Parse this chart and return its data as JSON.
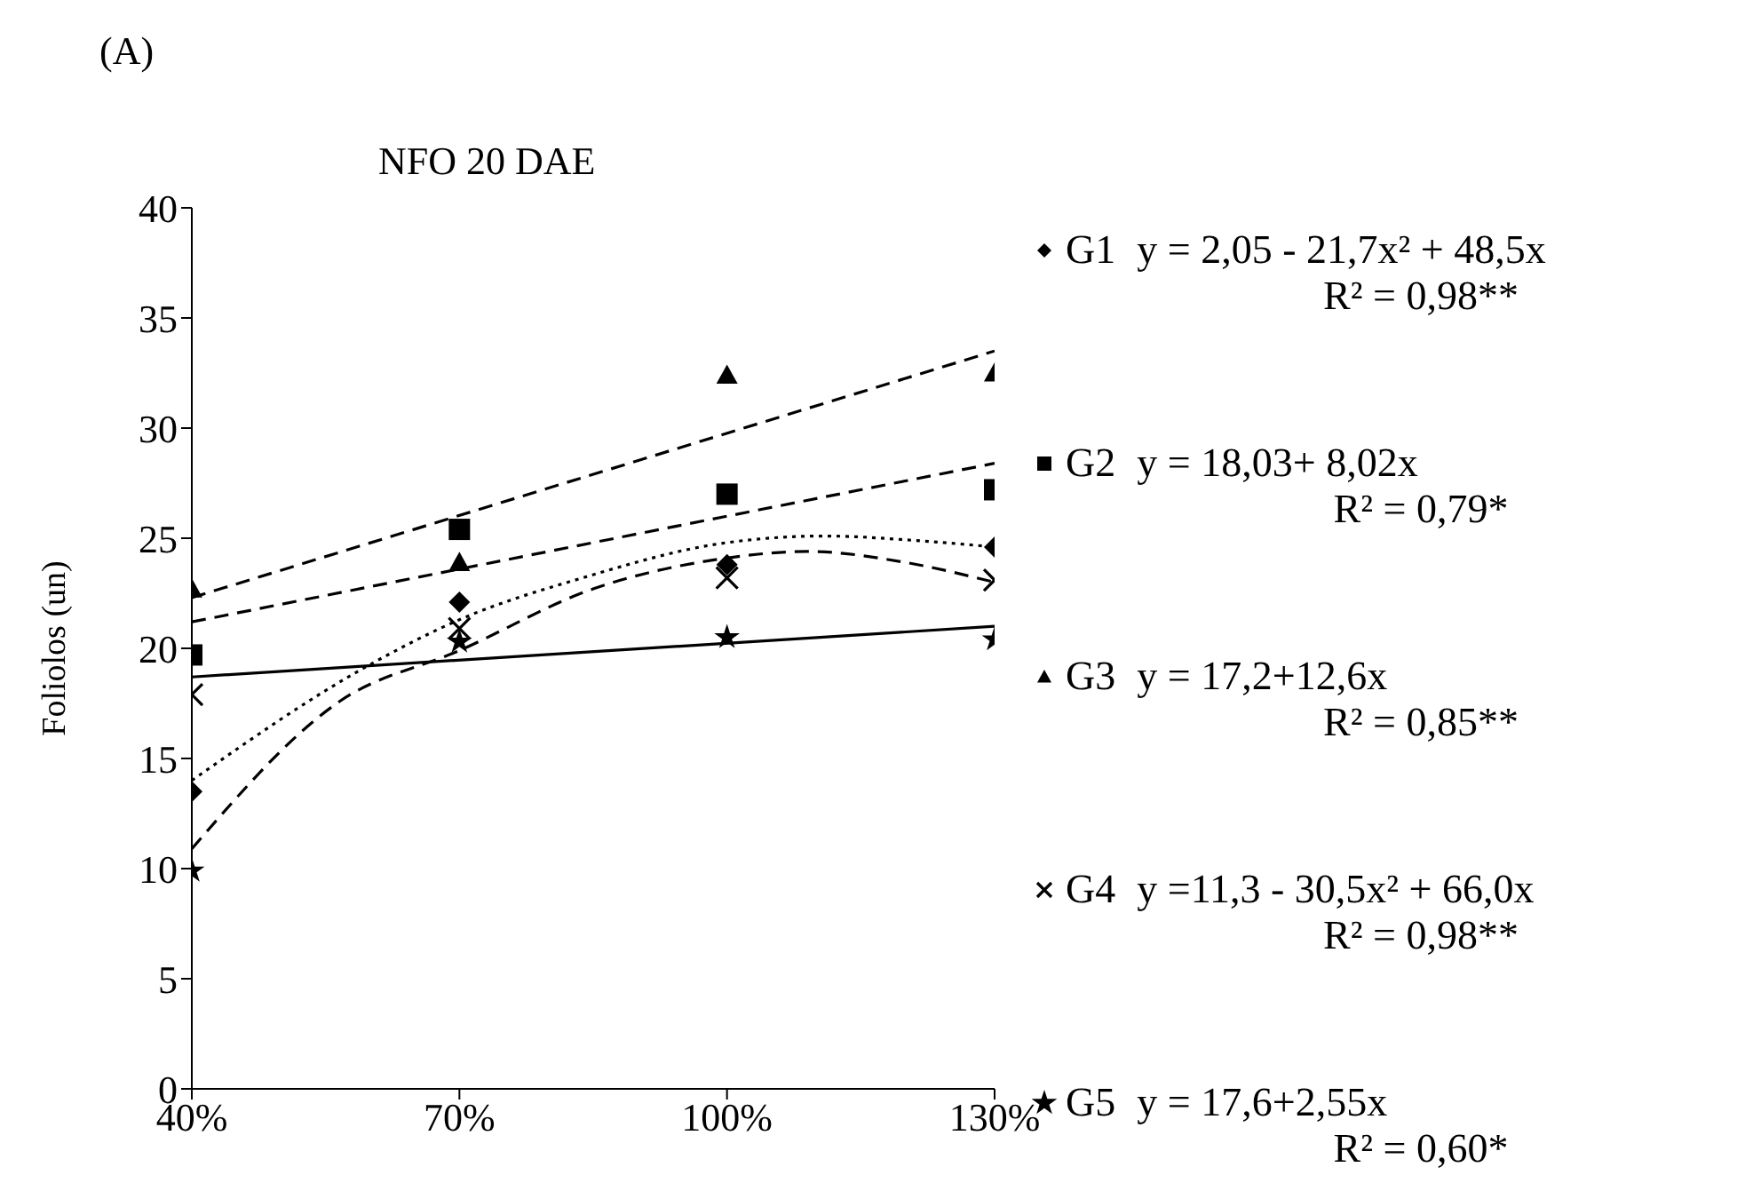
{
  "chart_data": {
    "type": "scatter",
    "title": "(A)",
    "subtitle": "NFO 20 DAE",
    "ylabel": "Foliolos (un)",
    "x": [
      40,
      70,
      100,
      130
    ],
    "xlim": [
      40,
      130
    ],
    "xticks": [
      {
        "value": 40,
        "label": "40%"
      },
      {
        "value": 70,
        "label": "70%"
      },
      {
        "value": 100,
        "label": "100%"
      },
      {
        "value": 130,
        "label": "130%"
      }
    ],
    "ylim": [
      0,
      40
    ],
    "yticks": [
      0,
      5,
      10,
      15,
      20,
      25,
      30,
      35,
      40
    ],
    "grid": false,
    "legend": "right",
    "series": [
      {
        "name": "G1",
        "marker": "diamond",
        "color": "#000000",
        "values": [
          13.5,
          22.1,
          23.8,
          24.6
        ]
      },
      {
        "name": "G2",
        "marker": "square",
        "color": "#000000",
        "values": [
          19.7,
          25.4,
          27.0,
          27.2
        ]
      },
      {
        "name": "G3",
        "marker": "triangle",
        "color": "#000000",
        "values": [
          22.7,
          23.9,
          32.4,
          32.5
        ]
      },
      {
        "name": "G4",
        "marker": "cross",
        "color": "#000000",
        "values": [
          17.9,
          20.9,
          23.2,
          23.1
        ]
      },
      {
        "name": "G5",
        "marker": "star",
        "color": "#000000",
        "values": [
          9.9,
          20.3,
          20.5,
          20.4
        ]
      },
      {
        "type": "line",
        "line_style": "dotted",
        "marker": "none",
        "color": "#000000",
        "x": [
          40,
          59.7,
          70,
          83.8,
          100,
          111,
          121,
          130
        ],
        "values": [
          14.0,
          19.2,
          21.3,
          23.2,
          24.8,
          25.1,
          24.9,
          24.6
        ]
      },
      {
        "type": "line",
        "line_style": "dashed",
        "marker": "none",
        "color": "#000000",
        "x": [
          40,
          130
        ],
        "values": [
          21.2,
          28.4
        ]
      },
      {
        "type": "line",
        "line_style": "dashed",
        "marker": "none",
        "color": "#000000",
        "x": [
          40,
          130
        ],
        "values": [
          22.3,
          33.5
        ]
      },
      {
        "type": "line",
        "line_style": "dashed",
        "marker": "none",
        "color": "#000000",
        "x": [
          40,
          56.6,
          70,
          85,
          100,
          109,
          120,
          130
        ],
        "values": [
          10.9,
          17.6,
          19.9,
          22.7,
          24.1,
          24.4,
          23.9,
          23.0
        ]
      },
      {
        "type": "line",
        "line_style": "solid",
        "marker": "none",
        "color": "#000000",
        "x": [
          40,
          130
        ],
        "values": [
          18.7,
          21.0
        ]
      }
    ],
    "annotations": [
      "y = 2,05 - 21,7x² + 48,5x",
      "R² = 0,98**",
      "y = 18,03+ 8,02x",
      "R² = 0,79*",
      "y = 17,2+12,6x",
      "R² = 0,85**",
      "y =11,3 - 30,5x² + 66,0x",
      "R² = 0,98**",
      "y = 17,6+2,55x",
      "R² = 0,60*"
    ]
  }
}
